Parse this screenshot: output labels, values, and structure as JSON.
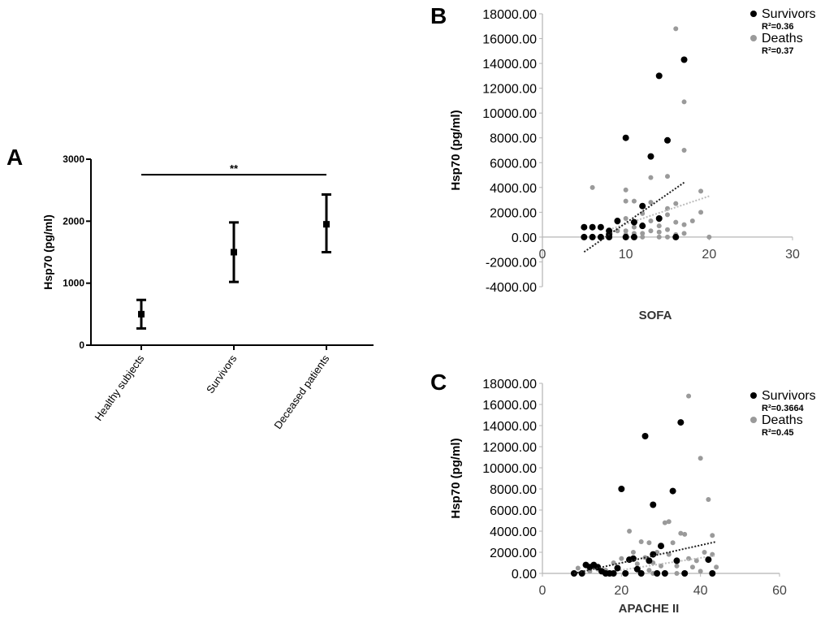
{
  "panels": [
    {
      "letter": "A"
    },
    {
      "letter": "B"
    },
    {
      "letter": "C"
    }
  ],
  "chart_data": [
    {
      "type": "scatter",
      "panel": "A",
      "ylabel": "Hsp70 (pg/ml)",
      "xlabel": "",
      "categories": [
        "Healthy subjects",
        "Survivors",
        "Deceased patients"
      ],
      "yticks": [
        "0",
        "1000",
        "2000",
        "3000"
      ],
      "ylim": [
        0,
        3000
      ],
      "series": [
        {
          "means": [
            500,
            1500,
            1950
          ],
          "error_low": [
            270,
            1020,
            1500
          ],
          "error_high": [
            730,
            1980,
            2430
          ]
        }
      ],
      "significance": {
        "label": "**",
        "from": "Healthy subjects",
        "to": "Deceased patients",
        "y": 2750
      }
    },
    {
      "type": "scatter",
      "panel": "B",
      "xlabel": "SOFA",
      "ylabel": "Hsp70 (pg/ml)",
      "xlim": [
        0,
        30
      ],
      "ylim": [
        -4000,
        18000
      ],
      "xticks": [
        "0",
        "10",
        "20",
        "30"
      ],
      "yticks": [
        "-4000.00",
        "-2000.00",
        "0.00",
        "2000.00",
        "4000.00",
        "6000.00",
        "8000.00",
        "10000.00",
        "12000.00",
        "14000.00",
        "16000.00",
        "18000.00"
      ],
      "legend_position": "top-right",
      "series": [
        {
          "name": "Survivors",
          "r2": "R²=0.36",
          "color": "#000000",
          "points": [
            [
              5,
              800
            ],
            [
              6,
              800
            ],
            [
              7,
              800
            ],
            [
              8,
              200
            ],
            [
              8,
              500
            ],
            [
              5,
              0
            ],
            [
              6,
              0
            ],
            [
              7,
              0
            ],
            [
              8,
              0
            ],
            [
              9,
              1300
            ],
            [
              10,
              8000
            ],
            [
              11,
              1200
            ],
            [
              12,
              2500
            ],
            [
              12,
              900
            ],
            [
              13,
              6500
            ],
            [
              14,
              13000
            ],
            [
              14,
              1500
            ],
            [
              15,
              7800
            ],
            [
              16,
              0
            ],
            [
              17,
              14300
            ],
            [
              10,
              0
            ],
            [
              11,
              0
            ]
          ],
          "trend": [
            [
              5,
              -1200
            ],
            [
              17,
              4400
            ]
          ]
        },
        {
          "name": "Deaths",
          "r2": "R²=0.37",
          "color": "#9a9a9a",
          "points": [
            [
              6,
              4000
            ],
            [
              9,
              500
            ],
            [
              9,
              1200
            ],
            [
              10,
              3800
            ],
            [
              10,
              2900
            ],
            [
              10,
              1500
            ],
            [
              10,
              500
            ],
            [
              10,
              200
            ],
            [
              11,
              2900
            ],
            [
              11,
              800
            ],
            [
              11,
              300
            ],
            [
              12,
              1900
            ],
            [
              12,
              1000
            ],
            [
              12,
              300
            ],
            [
              13,
              4800
            ],
            [
              13,
              2800
            ],
            [
              13,
              1300
            ],
            [
              13,
              500
            ],
            [
              14,
              1400
            ],
            [
              14,
              900
            ],
            [
              14,
              400
            ],
            [
              15,
              4900
            ],
            [
              15,
              2300
            ],
            [
              15,
              1800
            ],
            [
              15,
              600
            ],
            [
              15,
              0
            ],
            [
              16,
              16800
            ],
            [
              16,
              2700
            ],
            [
              16,
              1200
            ],
            [
              16,
              200
            ],
            [
              17,
              10900
            ],
            [
              17,
              7000
            ],
            [
              17,
              1000
            ],
            [
              17,
              300
            ],
            [
              18,
              1300
            ],
            [
              19,
              3700
            ],
            [
              19,
              2000
            ],
            [
              20,
              0
            ],
            [
              12,
              0
            ],
            [
              14,
              0
            ],
            [
              11,
              0
            ]
          ],
          "trend": [
            [
              8,
              600
            ],
            [
              20,
              3300
            ]
          ]
        }
      ]
    },
    {
      "type": "scatter",
      "panel": "C",
      "xlabel": "APACHE II",
      "ylabel": "Hsp70 (pg/ml)",
      "xlim": [
        0,
        60
      ],
      "ylim": [
        0,
        18000
      ],
      "xticks": [
        "0",
        "20",
        "40",
        "60"
      ],
      "yticks": [
        "0.00",
        "2000.00",
        "4000.00",
        "6000.00",
        "8000.00",
        "10000.00",
        "12000.00",
        "14000.00",
        "16000.00",
        "18000.00"
      ],
      "legend_position": "top-right",
      "series": [
        {
          "name": "Survivors",
          "r2": "R²=0.3664",
          "color": "#000000",
          "points": [
            [
              8,
              0
            ],
            [
              10,
              0
            ],
            [
              11,
              800
            ],
            [
              12,
              600
            ],
            [
              13,
              800
            ],
            [
              14,
              600
            ],
            [
              15,
              200
            ],
            [
              16,
              0
            ],
            [
              17,
              0
            ],
            [
              18,
              0
            ],
            [
              19,
              500
            ],
            [
              20,
              8000
            ],
            [
              21,
              0
            ],
            [
              22,
              1300
            ],
            [
              23,
              1400
            ],
            [
              24,
              400
            ],
            [
              25,
              0
            ],
            [
              26,
              13000
            ],
            [
              27,
              1200
            ],
            [
              28,
              6500
            ],
            [
              28,
              1800
            ],
            [
              29,
              0
            ],
            [
              30,
              2600
            ],
            [
              31,
              0
            ],
            [
              33,
              7800
            ],
            [
              34,
              1200
            ],
            [
              35,
              14300
            ],
            [
              36,
              0
            ],
            [
              42,
              1300
            ],
            [
              43,
              0
            ]
          ],
          "trend": [
            [
              8,
              0
            ],
            [
              44,
              3000
            ]
          ]
        },
        {
          "name": "Deaths",
          "r2": "R²=0.45",
          "color": "#9a9a9a",
          "points": [
            [
              9,
              500
            ],
            [
              12,
              200
            ],
            [
              14,
              400
            ],
            [
              16,
              300
            ],
            [
              18,
              1000
            ],
            [
              20,
              1400
            ],
            [
              22,
              4000
            ],
            [
              23,
              2000
            ],
            [
              24,
              900
            ],
            [
              25,
              3000
            ],
            [
              26,
              1500
            ],
            [
              27,
              2900
            ],
            [
              27,
              300
            ],
            [
              28,
              1000
            ],
            [
              29,
              2000
            ],
            [
              30,
              700
            ],
            [
              31,
              4800
            ],
            [
              32,
              4900
            ],
            [
              32,
              1800
            ],
            [
              33,
              2900
            ],
            [
              34,
              700
            ],
            [
              35,
              3800
            ],
            [
              36,
              3700
            ],
            [
              37,
              16800
            ],
            [
              37,
              1400
            ],
            [
              38,
              600
            ],
            [
              39,
              1200
            ],
            [
              40,
              10900
            ],
            [
              40,
              200
            ],
            [
              41,
              2000
            ],
            [
              42,
              7000
            ],
            [
              43,
              1800
            ],
            [
              43,
              3600
            ],
            [
              44,
              600
            ],
            [
              28,
              0
            ],
            [
              34,
              0
            ]
          ],
          "trend": [
            [
              18,
              200
            ],
            [
              44,
              1700
            ]
          ]
        }
      ]
    }
  ]
}
